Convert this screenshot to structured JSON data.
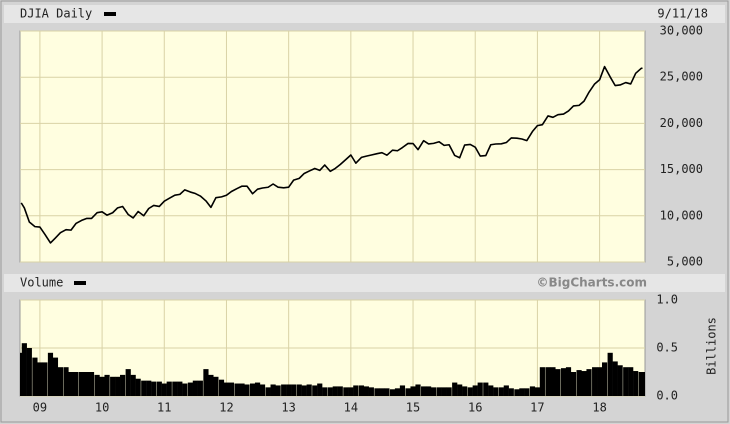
{
  "chart_data": [
    {
      "type": "line",
      "title": "DJIA Daily",
      "date": "9/11/18",
      "color": "#000000",
      "x": [
        2008.7,
        2008.75,
        2008.83,
        2008.92,
        2009.0,
        2009.08,
        2009.17,
        2009.25,
        2009.33,
        2009.42,
        2009.5,
        2009.58,
        2009.67,
        2009.75,
        2009.83,
        2009.92,
        2010.0,
        2010.08,
        2010.17,
        2010.25,
        2010.33,
        2010.42,
        2010.5,
        2010.58,
        2010.67,
        2010.75,
        2010.83,
        2010.92,
        2011.0,
        2011.08,
        2011.17,
        2011.25,
        2011.33,
        2011.42,
        2011.5,
        2011.58,
        2011.67,
        2011.75,
        2011.83,
        2011.92,
        2012.0,
        2012.08,
        2012.17,
        2012.25,
        2012.33,
        2012.42,
        2012.5,
        2012.58,
        2012.67,
        2012.75,
        2012.83,
        2012.92,
        2013.0,
        2013.08,
        2013.17,
        2013.25,
        2013.33,
        2013.42,
        2013.5,
        2013.58,
        2013.67,
        2013.75,
        2013.83,
        2013.92,
        2014.0,
        2014.08,
        2014.17,
        2014.25,
        2014.33,
        2014.42,
        2014.5,
        2014.58,
        2014.67,
        2014.75,
        2014.83,
        2014.92,
        2015.0,
        2015.08,
        2015.17,
        2015.25,
        2015.33,
        2015.42,
        2015.5,
        2015.58,
        2015.67,
        2015.75,
        2015.83,
        2015.92,
        2016.0,
        2016.08,
        2016.17,
        2016.25,
        2016.33,
        2016.42,
        2016.5,
        2016.58,
        2016.67,
        2016.75,
        2016.83,
        2016.92,
        2017.0,
        2017.08,
        2017.17,
        2017.25,
        2017.33,
        2017.42,
        2017.5,
        2017.58,
        2017.67,
        2017.75,
        2017.83,
        2017.92,
        2018.0,
        2018.08,
        2018.17,
        2018.25,
        2018.33,
        2018.42,
        2018.5,
        2018.58,
        2018.67,
        2018.69
      ],
      "values": [
        11400,
        10850,
        9330,
        8830,
        8780,
        8000,
        7060,
        7610,
        8170,
        8500,
        8450,
        9170,
        9500,
        9710,
        9710,
        10340,
        10430,
        10070,
        10330,
        10860,
        11010,
        10140,
        9770,
        10470,
        10010,
        10790,
        11120,
        11010,
        11580,
        11890,
        12230,
        12320,
        12810,
        12570,
        12410,
        12140,
        11610,
        10910,
        11960,
        12050,
        12220,
        12630,
        12950,
        13210,
        13210,
        12390,
        12880,
        13010,
        13090,
        13440,
        13100,
        13030,
        13100,
        13860,
        14050,
        14580,
        14840,
        15120,
        14910,
        15500,
        14810,
        15130,
        15550,
        16090,
        16580,
        15700,
        16320,
        16460,
        16580,
        16720,
        16830,
        16560,
        17100,
        17040,
        17390,
        17830,
        17820,
        17160,
        18130,
        17780,
        17840,
        18010,
        17620,
        17690,
        16530,
        16280,
        17660,
        17720,
        17430,
        16470,
        16520,
        17690,
        17770,
        17790,
        17930,
        18430,
        18400,
        18310,
        18140,
        19120,
        19760,
        19860,
        20810,
        20660,
        20940,
        21010,
        21350,
        21890,
        21950,
        22410,
        23380,
        24270,
        24720,
        26150,
        25030,
        24100,
        24160,
        24420,
        24270,
        25420,
        25960,
        25970
      ],
      "xlim": [
        2008.68,
        2018.73
      ],
      "xticks": [
        2009,
        2010,
        2011,
        2012,
        2013,
        2014,
        2015,
        2016,
        2017,
        2018
      ],
      "ylim": [
        5000,
        30000
      ],
      "yticks": [
        {
          "value": 5000,
          "label": "5,000"
        },
        {
          "value": 10000,
          "label": "10,000"
        },
        {
          "value": 15000,
          "label": "15,000"
        },
        {
          "value": 20000,
          "label": "20,000"
        },
        {
          "value": 25000,
          "label": "25,000"
        },
        {
          "value": 30000,
          "label": "30,000"
        }
      ],
      "grid": true
    },
    {
      "type": "bar",
      "title": "Volume",
      "credit": "©BigCharts.com",
      "y_label": "Billions",
      "color": "#000000",
      "x": [
        2008.7,
        2008.75,
        2008.83,
        2008.92,
        2009.0,
        2009.08,
        2009.17,
        2009.25,
        2009.33,
        2009.42,
        2009.5,
        2009.58,
        2009.67,
        2009.75,
        2009.83,
        2009.92,
        2010.0,
        2010.08,
        2010.17,
        2010.25,
        2010.33,
        2010.42,
        2010.5,
        2010.58,
        2010.67,
        2010.75,
        2010.83,
        2010.92,
        2011.0,
        2011.08,
        2011.17,
        2011.25,
        2011.33,
        2011.42,
        2011.5,
        2011.58,
        2011.67,
        2011.75,
        2011.83,
        2011.92,
        2012.0,
        2012.08,
        2012.17,
        2012.25,
        2012.33,
        2012.42,
        2012.5,
        2012.58,
        2012.67,
        2012.75,
        2012.83,
        2012.92,
        2013.0,
        2013.08,
        2013.17,
        2013.25,
        2013.33,
        2013.42,
        2013.5,
        2013.58,
        2013.67,
        2013.75,
        2013.83,
        2013.92,
        2014.0,
        2014.08,
        2014.17,
        2014.25,
        2014.33,
        2014.42,
        2014.5,
        2014.58,
        2014.67,
        2014.75,
        2014.83,
        2014.92,
        2015.0,
        2015.08,
        2015.17,
        2015.25,
        2015.33,
        2015.42,
        2015.5,
        2015.58,
        2015.67,
        2015.75,
        2015.83,
        2015.92,
        2016.0,
        2016.08,
        2016.17,
        2016.25,
        2016.33,
        2016.42,
        2016.5,
        2016.58,
        2016.67,
        2016.75,
        2016.83,
        2016.92,
        2017.0,
        2017.08,
        2017.17,
        2017.25,
        2017.33,
        2017.42,
        2017.5,
        2017.58,
        2017.67,
        2017.75,
        2017.83,
        2017.92,
        2018.0,
        2018.08,
        2018.17,
        2018.25,
        2018.33,
        2018.42,
        2018.5,
        2018.58,
        2018.67,
        2018.69
      ],
      "values": [
        0.45,
        0.55,
        0.5,
        0.4,
        0.35,
        0.35,
        0.45,
        0.4,
        0.3,
        0.3,
        0.25,
        0.25,
        0.25,
        0.25,
        0.25,
        0.22,
        0.2,
        0.22,
        0.2,
        0.2,
        0.22,
        0.28,
        0.22,
        0.18,
        0.16,
        0.16,
        0.15,
        0.15,
        0.13,
        0.15,
        0.15,
        0.15,
        0.13,
        0.14,
        0.16,
        0.16,
        0.28,
        0.22,
        0.2,
        0.17,
        0.14,
        0.14,
        0.13,
        0.13,
        0.12,
        0.13,
        0.14,
        0.12,
        0.09,
        0.12,
        0.11,
        0.12,
        0.12,
        0.12,
        0.12,
        0.11,
        0.12,
        0.11,
        0.13,
        0.09,
        0.09,
        0.1,
        0.1,
        0.09,
        0.09,
        0.11,
        0.11,
        0.1,
        0.09,
        0.08,
        0.08,
        0.08,
        0.07,
        0.08,
        0.11,
        0.08,
        0.1,
        0.12,
        0.1,
        0.1,
        0.09,
        0.09,
        0.09,
        0.09,
        0.14,
        0.12,
        0.1,
        0.09,
        0.11,
        0.14,
        0.14,
        0.11,
        0.09,
        0.09,
        0.11,
        0.08,
        0.07,
        0.08,
        0.08,
        0.1,
        0.09,
        0.3,
        0.3,
        0.3,
        0.28,
        0.29,
        0.3,
        0.25,
        0.27,
        0.26,
        0.28,
        0.3,
        0.3,
        0.35,
        0.45,
        0.36,
        0.32,
        0.3,
        0.3,
        0.26,
        0.25,
        0.25
      ],
      "xlim": [
        2008.68,
        2018.73
      ],
      "xticks": [
        {
          "value": 2009,
          "label": "09"
        },
        {
          "value": 2010,
          "label": "10"
        },
        {
          "value": 2011,
          "label": "11"
        },
        {
          "value": 2012,
          "label": "12"
        },
        {
          "value": 2013,
          "label": "13"
        },
        {
          "value": 2014,
          "label": "14"
        },
        {
          "value": 2015,
          "label": "15"
        },
        {
          "value": 2016,
          "label": "16"
        },
        {
          "value": 2017,
          "label": "17"
        },
        {
          "value": 2018,
          "label": "18"
        }
      ],
      "ylim": [
        0,
        1
      ],
      "yticks": [
        {
          "value": 0,
          "label": "0.0"
        },
        {
          "value": 0.5,
          "label": "0.5"
        },
        {
          "value": 1,
          "label": "1.0"
        }
      ],
      "grid": true
    }
  ]
}
